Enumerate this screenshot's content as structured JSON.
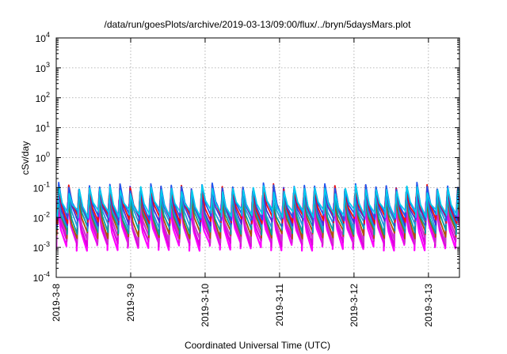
{
  "chart_data": {
    "type": "line",
    "title": "/data/run/goesPlots/archive/2019-03-13/09:00/flux/../bryn/5daysMars.plot",
    "xlabel": "Coordinated Universal Time (UTC)",
    "ylabel": "cSv/day",
    "y_scale": "log",
    "ylim": [
      0.0001,
      10000
    ],
    "xlim": [
      "2019-03-08 00:00",
      "2019-03-13 10:00"
    ],
    "x_ticks": [
      "2019-3-8",
      "2019-3-9",
      "2019-3-10",
      "2019-3-11",
      "2019-3-12",
      "2019-3-13"
    ],
    "y_ticks": [
      {
        "base": "10",
        "exp": "-4",
        "value": 0.0001
      },
      {
        "base": "10",
        "exp": "-3",
        "value": 0.001
      },
      {
        "base": "10",
        "exp": "-2",
        "value": 0.01
      },
      {
        "base": "10",
        "exp": "-1",
        "value": 0.1
      },
      {
        "base": "10",
        "exp": "0",
        "value": 1
      },
      {
        "base": "10",
        "exp": "1",
        "value": 10
      },
      {
        "base": "10",
        "exp": "2",
        "value": 100
      },
      {
        "base": "10",
        "exp": "3",
        "value": 1000
      },
      {
        "base": "10",
        "exp": "4",
        "value": 10000
      }
    ],
    "grid": true,
    "legend": "none",
    "pattern": {
      "cycle_hours": 3.3,
      "description_of_shape": "sawtooth: sharp rise then decay each cycle"
    },
    "series": [
      {
        "color": "#ff00ff",
        "peak": 0.022,
        "trough": 0.0011
      },
      {
        "color": "#e000e0",
        "peak": 0.028,
        "trough": 0.0015
      },
      {
        "color": "#cc33cc",
        "peak": 0.035,
        "trough": 0.002
      },
      {
        "color": "#aa5500",
        "peak": 0.045,
        "trough": 0.0028
      },
      {
        "color": "#00a0a0",
        "peak": 0.055,
        "trough": 0.0038
      },
      {
        "color": "#2299dd",
        "peak": 0.07,
        "trough": 0.0055
      },
      {
        "color": "#4b2bd8",
        "peak": 0.085,
        "trough": 0.0075
      },
      {
        "color": "#ee1111",
        "peak": 0.1,
        "trough": 0.009
      },
      {
        "color": "#2255ee",
        "peak": 0.11,
        "trough": 0.011
      },
      {
        "color": "#00ccee",
        "peak": 0.09,
        "trough": 0.014
      }
    ]
  }
}
